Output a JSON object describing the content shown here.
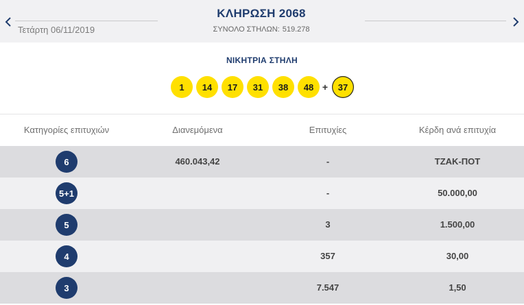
{
  "header": {
    "date": "Τετάρτη 06/11/2019",
    "draw_title": "ΚΛΗΡΩΣΗ 2068",
    "total_columns_label": "ΣΥΝΟΛΟ ΣΤΗΛΩΝ:",
    "total_columns_value": "519.278",
    "prev_icon": "chevron-left-icon",
    "next_icon": "chevron-right-icon"
  },
  "winning": {
    "title": "ΝΙΚΗΤΡΙΑ ΣΤΗΛΗ",
    "numbers": [
      "1",
      "14",
      "17",
      "31",
      "38",
      "48"
    ],
    "plus": "+",
    "bonus": "37"
  },
  "table": {
    "headers": [
      "Κατηγορίες επιτυχιών",
      "Διανεμόμενα",
      "Επιτυχίες",
      "Κέρδη ανά επιτυχία"
    ],
    "rows": [
      {
        "category": "6",
        "distributed": "460.043,42",
        "winners": "-",
        "prize": "ΤΖΑΚ-ΠΟΤ"
      },
      {
        "category": "5+1",
        "distributed": "",
        "winners": "-",
        "prize": "50.000,00"
      },
      {
        "category": "5",
        "distributed": "",
        "winners": "3",
        "prize": "1.500,00"
      },
      {
        "category": "4",
        "distributed": "",
        "winners": "357",
        "prize": "30,00"
      },
      {
        "category": "3",
        "distributed": "",
        "winners": "7.547",
        "prize": "1,50"
      }
    ]
  },
  "colors": {
    "navy": "#1f3c6e",
    "ball_yellow": "#ffe000",
    "row_shaded": "#dcdcdf",
    "row_plain": "#f0f0f2"
  }
}
